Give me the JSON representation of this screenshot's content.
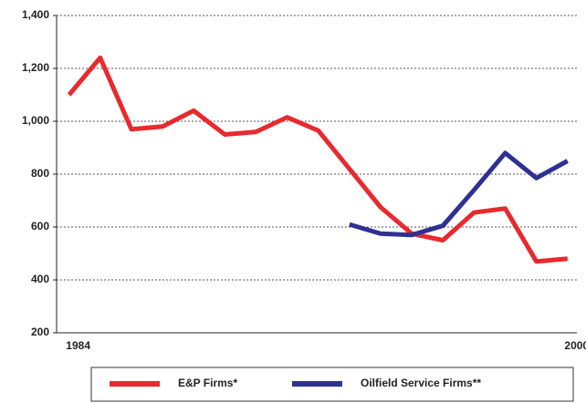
{
  "chart_data": {
    "type": "line",
    "x": [
      1984,
      1985,
      1986,
      1987,
      1988,
      1989,
      1990,
      1991,
      1992,
      1993,
      1994,
      1995,
      1996,
      1997,
      1998,
      1999,
      2000
    ],
    "series": [
      {
        "name": "E&P Firms*",
        "color": "#e8292e",
        "values": [
          1100,
          1240,
          970,
          980,
          1040,
          950,
          960,
          1015,
          965,
          820,
          675,
          575,
          550,
          655,
          670,
          470,
          480
        ]
      },
      {
        "name": "Oilfield Service Firms**",
        "color": "#2e3192",
        "values": [
          null,
          null,
          null,
          null,
          null,
          null,
          null,
          null,
          null,
          610,
          575,
          570,
          605,
          740,
          880,
          785,
          850
        ]
      }
    ],
    "xlim": [
      1983.6,
      2000.3
    ],
    "xticks": [
      1984,
      2000
    ],
    "ylim": [
      200,
      1400
    ],
    "yticks": [
      200,
      400,
      600,
      800,
      {
        "value": 1000,
        "label": "1,000"
      },
      {
        "value": 1200,
        "label": "1,200"
      },
      {
        "value": 1400,
        "label": "1,400"
      }
    ],
    "grid": true,
    "legend": "bottom"
  }
}
